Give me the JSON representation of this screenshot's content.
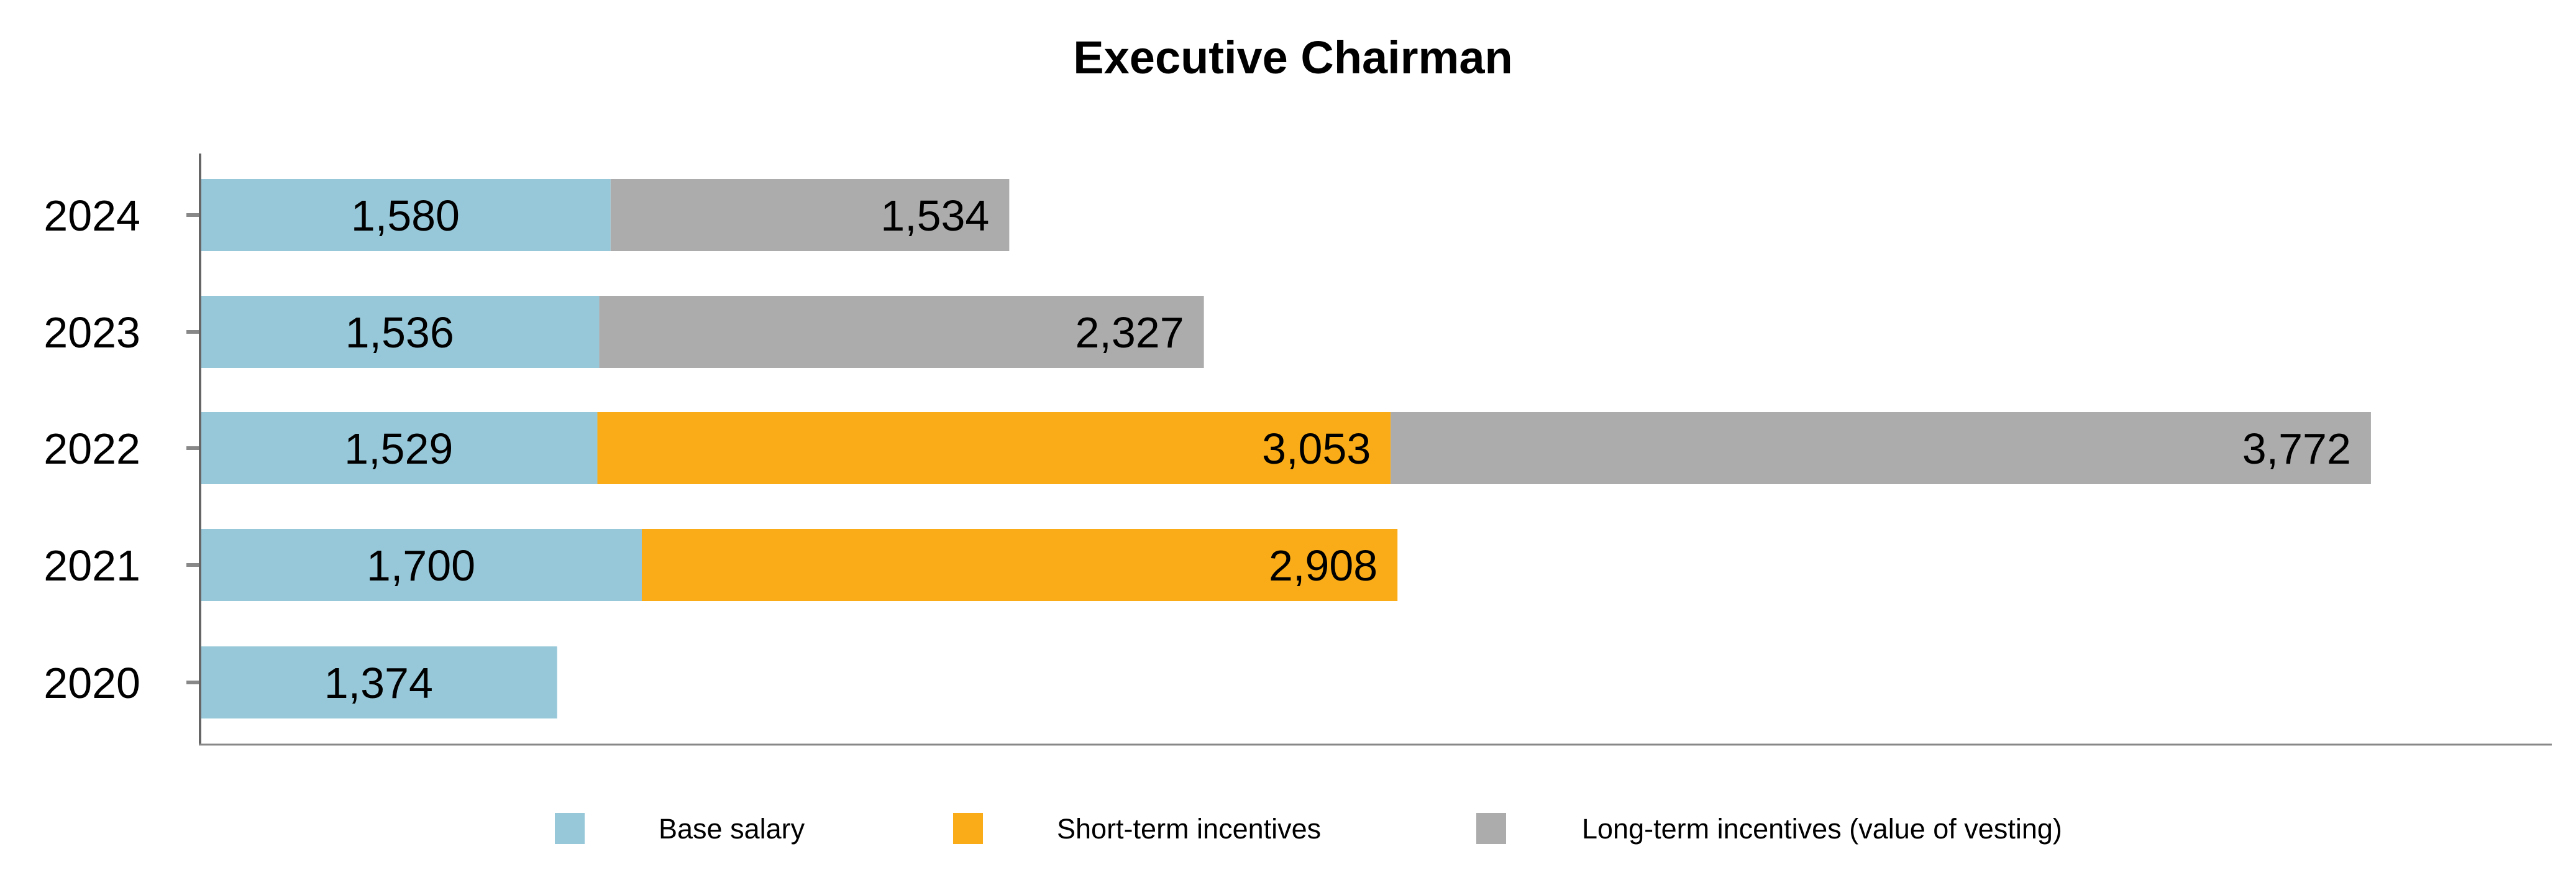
{
  "chart_data": {
    "type": "bar",
    "orientation": "horizontal",
    "stacked": true,
    "title": "Executive Chairman",
    "xlabel": "",
    "ylabel": "",
    "xlim": [
      0,
      9050
    ],
    "grid": false,
    "legend_position": "bottom",
    "categories": [
      "2024",
      "2023",
      "2022",
      "2021",
      "2020"
    ],
    "series": [
      {
        "name": "Base salary",
        "color": "#97c8d9",
        "values": [
          1580,
          1536,
          1529,
          1700,
          1374
        ],
        "labels": [
          "1,580",
          "1,536",
          "1,529",
          "1,700",
          "1,374"
        ]
      },
      {
        "name": "Short-term incentives",
        "color": "#f9ac17",
        "values": [
          0,
          0,
          3053,
          2908,
          0
        ],
        "labels": [
          "",
          "",
          "3,053",
          "2,908",
          ""
        ]
      },
      {
        "name": "Long-term incentives (value of vesting)",
        "color": "#acacac",
        "values": [
          1534,
          2327,
          3772,
          0,
          0
        ],
        "labels": [
          "1,534",
          "2,327",
          "3,772",
          "",
          ""
        ]
      }
    ]
  }
}
